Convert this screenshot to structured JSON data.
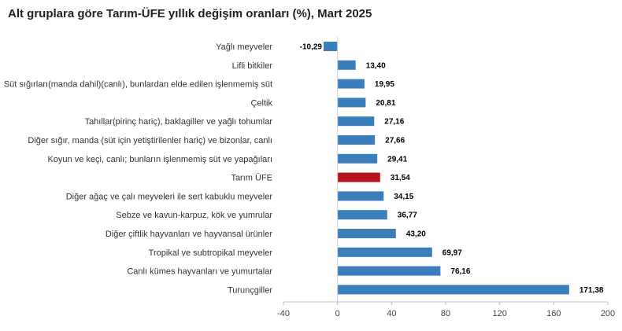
{
  "chart_data": {
    "type": "bar",
    "orientation": "horizontal",
    "title": "Alt gruplara göre Tarım-ÜFE yıllık değişim oranları (%), Mart 2025",
    "categories": [
      "Yağlı meyveler",
      "Lifli bitkiler",
      "Süt sığırları(manda dahil)(canlı), bunlardan elde edilen işlenmemiş süt",
      "Çeltik",
      "Tahıllar(pirinç hariç), baklagiller ve yağlı tohumlar",
      "Diğer sığır, manda (süt için yetiştirilenler hariç) ve bizonlar, canlı",
      "Koyun ve keçi, canlı; bunların işlenmemiş süt ve yapağıları",
      "Tarım ÜFE",
      "Diğer ağaç ve çalı meyveleri ile sert kabuklu meyveler",
      "Sebze ve kavun-karpuz, kök ve yumrular",
      "Diğer çiftlik hayvanları ve hayvansal ürünler",
      "Tropikal ve subtropikal meyveler",
      "Canlı kümes hayvanları ve yumurtalar",
      "Turunçgiller"
    ],
    "values": [
      -10.29,
      13.4,
      19.95,
      20.81,
      27.16,
      27.66,
      29.41,
      31.54,
      34.15,
      36.77,
      43.2,
      69.97,
      76.16,
      171.38
    ],
    "value_labels": [
      "-10,29",
      "13,40",
      "19,95",
      "20,81",
      "27,16",
      "27,66",
      "29,41",
      "31,54",
      "34,15",
      "36,77",
      "43,20",
      "69,97",
      "76,16",
      "171,38"
    ],
    "highlight_category": "Tarım ÜFE",
    "bar_color": "#3a7fbc",
    "highlight_color": "#b5141f",
    "xlim": [
      -40,
      200
    ],
    "xticks": [
      -40,
      0,
      40,
      80,
      120,
      160,
      200
    ],
    "xlabel": "",
    "ylabel": "",
    "grid": false,
    "legend": "none"
  }
}
